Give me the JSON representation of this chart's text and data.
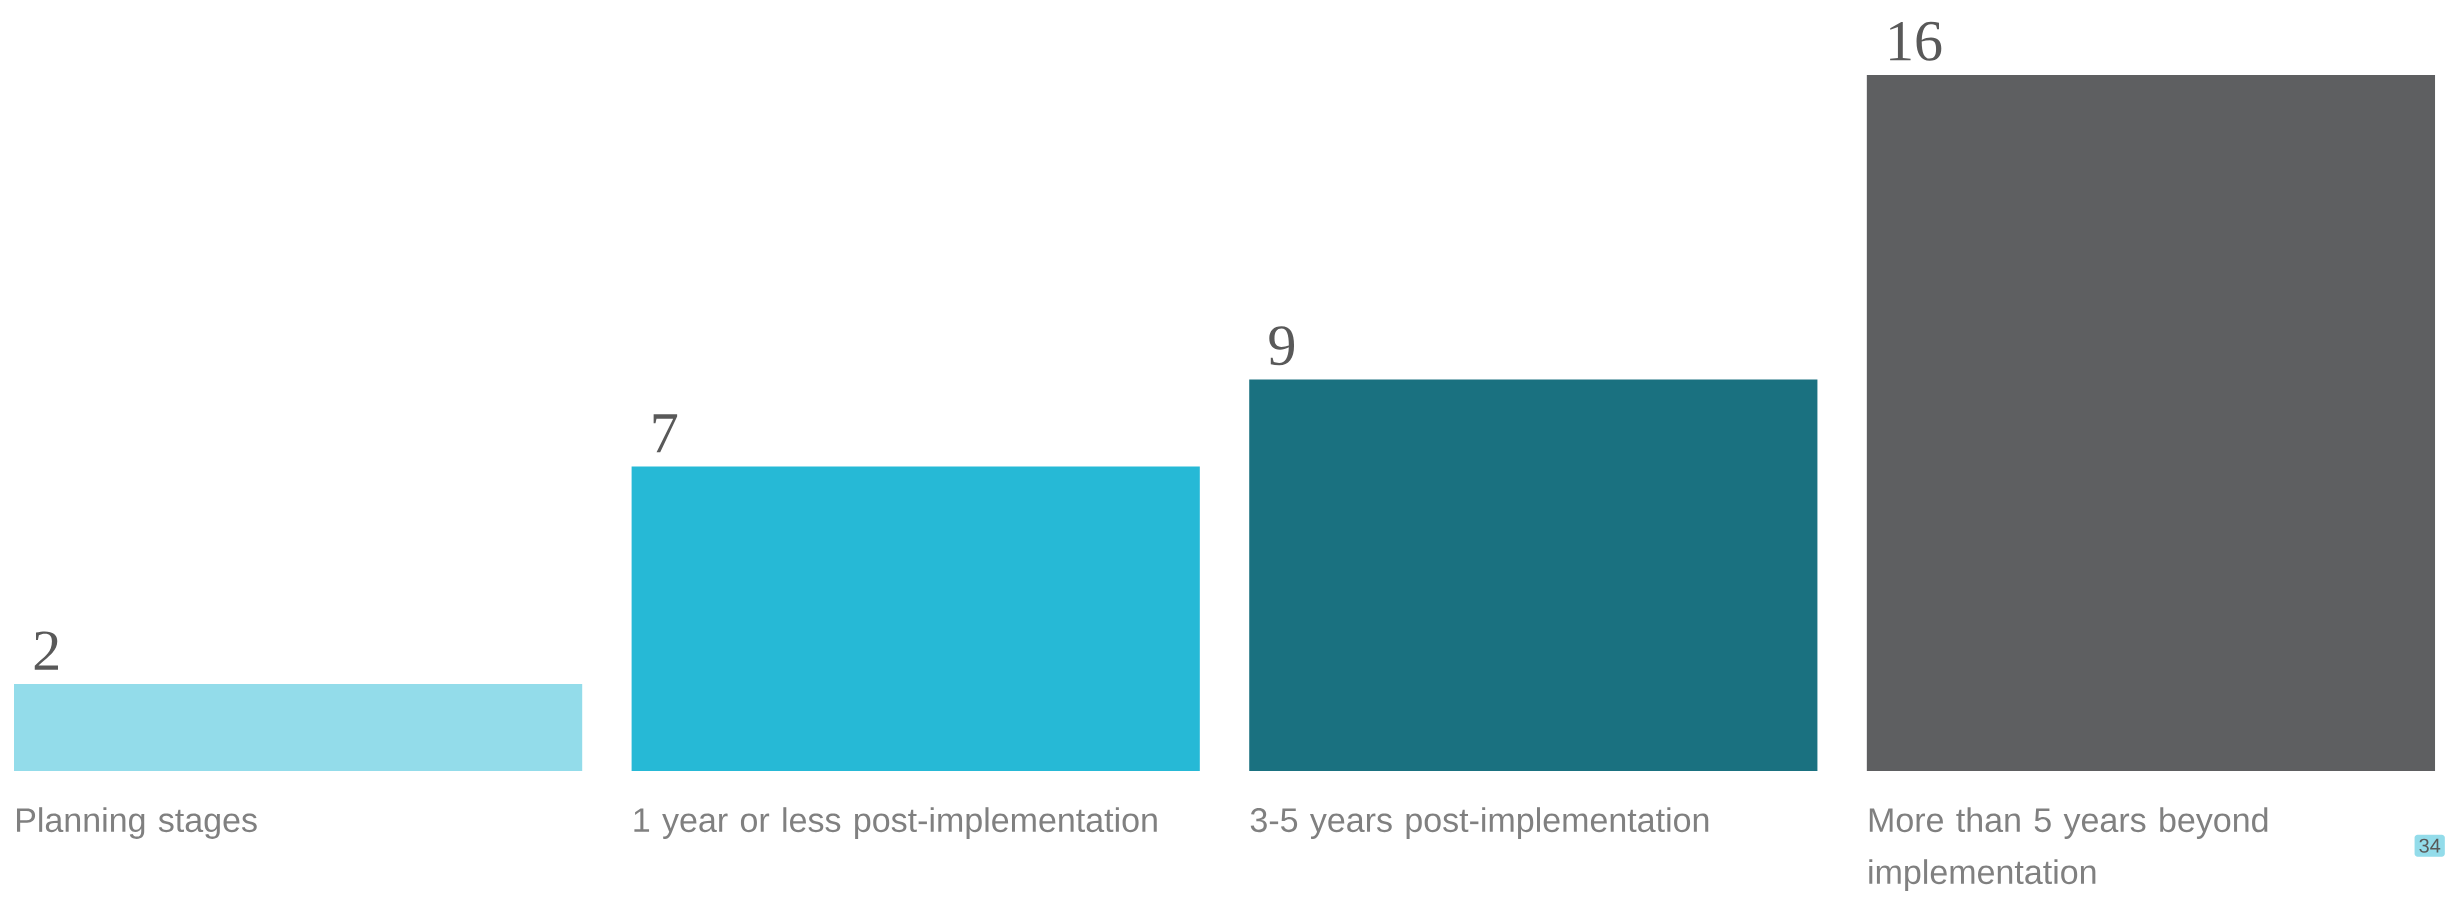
{
  "chart_data": {
    "type": "bar",
    "categories": [
      "Planning stages",
      "1 year or less post-implementation",
      "3-5 years post-implementation",
      "More than 5 years beyond implementation"
    ],
    "values": [
      2,
      7,
      9,
      16
    ],
    "colors": [
      "#93dcea",
      "#26b9d6",
      "#1a7180",
      "#5e5f61"
    ],
    "data_labels": true,
    "annotations": [
      "34"
    ]
  }
}
